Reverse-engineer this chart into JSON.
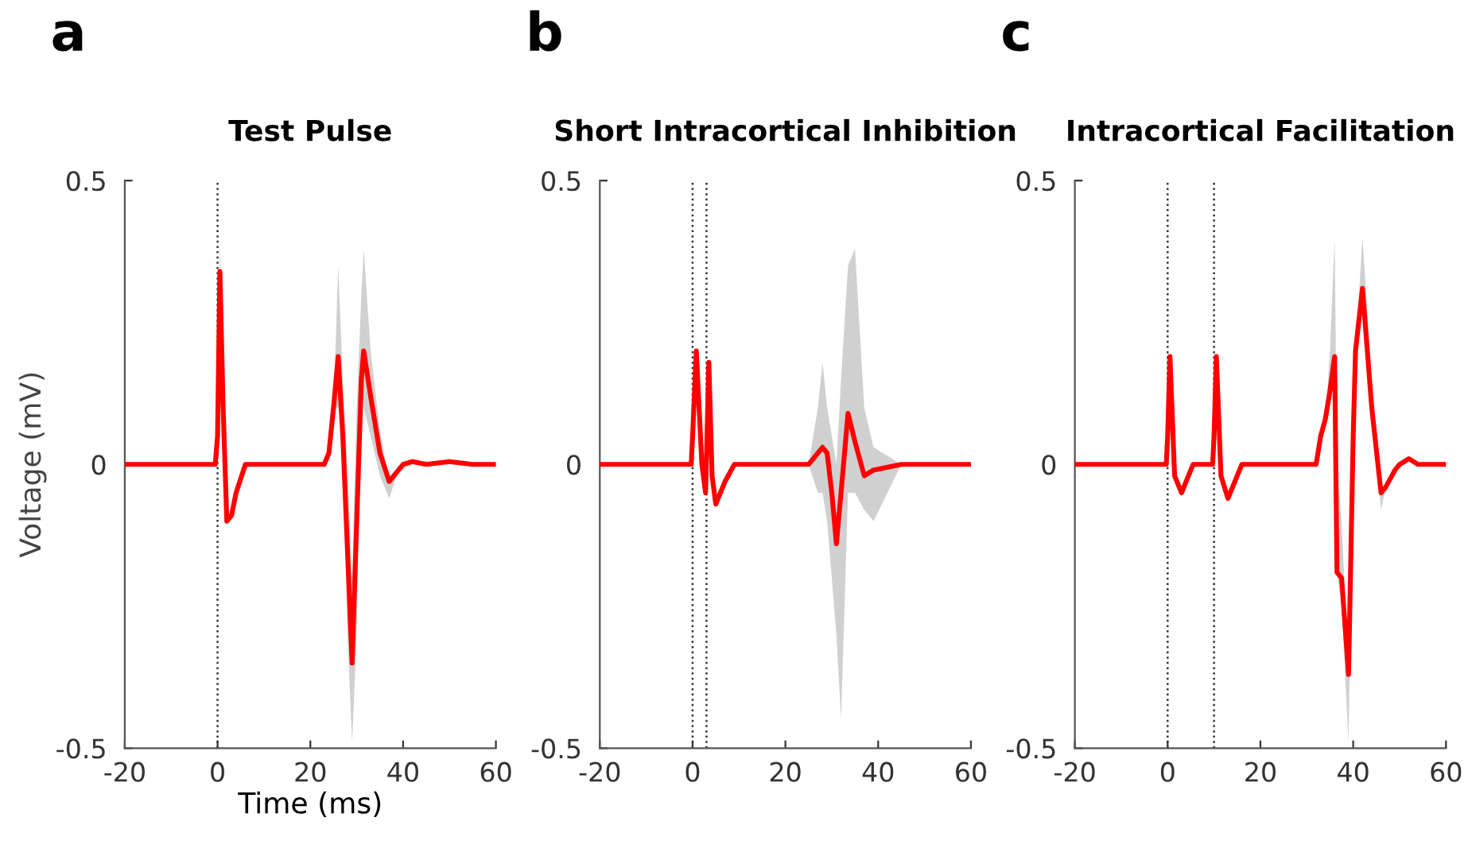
{
  "chart_data": [
    {
      "type": "line",
      "title": "Test Pulse",
      "xlabel": "Time (ms)",
      "ylabel": "Voltage (mV)",
      "annotations": [
        "a"
      ],
      "xlim": [
        -20,
        60
      ],
      "ylim": [
        -0.5,
        0.5
      ],
      "xticks": [
        -20,
        0,
        20,
        40,
        60
      ],
      "yticks": [
        -0.5,
        0,
        0.5
      ],
      "grid": false,
      "legend": false,
      "ref_lines": [
        {
          "axis": "x",
          "value": 0,
          "label": null,
          "color": "#333333",
          "line_style": "dotted"
        }
      ],
      "x": [
        -20,
        -10,
        -0.5,
        0,
        0.5,
        1.2,
        2,
        3,
        4,
        6,
        10,
        20,
        23,
        24,
        25,
        26,
        27,
        28,
        29,
        30,
        31,
        31.5,
        33,
        35,
        37,
        39,
        40,
        42,
        45,
        50,
        55,
        60
      ],
      "series": [
        {
          "color": "#ff0000",
          "values": [
            0,
            0,
            0,
            0.05,
            0.34,
            0.1,
            -0.1,
            -0.09,
            -0.05,
            0,
            0,
            0,
            0,
            0.02,
            0.1,
            0.19,
            0.05,
            -0.15,
            -0.35,
            -0.1,
            0.15,
            0.2,
            0.12,
            0.02,
            -0.03,
            -0.01,
            0,
            0.005,
            0,
            0.005,
            0,
            0
          ],
          "upper": [
            0,
            0,
            0,
            0.05,
            0.4,
            0.1,
            -0.1,
            -0.09,
            -0.05,
            0,
            0,
            0,
            0,
            0.02,
            0.1,
            0.35,
            0.15,
            0,
            -0.2,
            0.1,
            0.3,
            0.38,
            0.2,
            0.06,
            -0.03,
            -0.01,
            0,
            0.005,
            0,
            0.005,
            0,
            0
          ],
          "lower": [
            0,
            0,
            0,
            0.05,
            0.34,
            0.1,
            -0.1,
            -0.09,
            -0.05,
            0,
            0,
            0,
            0,
            0.02,
            0.1,
            0.1,
            0.05,
            -0.3,
            -0.49,
            -0.3,
            0.15,
            0.1,
            0.05,
            -0.02,
            -0.06,
            -0.01,
            0,
            0.005,
            0,
            0.005,
            0,
            0
          ]
        }
      ]
    },
    {
      "type": "line",
      "title": "Short Intracortical Inhibition",
      "annotations": [
        "b"
      ],
      "xlim": [
        -20,
        60
      ],
      "ylim": [
        -0.5,
        0.5
      ],
      "xticks": [
        -20,
        0,
        20,
        40,
        60
      ],
      "yticks": [
        -0.5,
        0,
        0.5
      ],
      "grid": false,
      "legend": false,
      "ref_lines": [
        {
          "axis": "x",
          "value": 0,
          "label": null,
          "color": "#333333",
          "line_style": "dotted"
        },
        {
          "axis": "x",
          "value": 3,
          "label": null,
          "color": "#333333",
          "line_style": "dotted"
        }
      ],
      "x": [
        -20,
        -10,
        -0.3,
        0,
        0.8,
        2,
        2.8,
        3.5,
        4.2,
        5,
        7,
        9,
        20,
        25,
        27,
        28,
        29,
        30,
        31,
        32,
        33.5,
        35,
        37,
        39,
        45,
        60
      ],
      "series": [
        {
          "color": "#ff0000",
          "values": [
            0,
            0,
            0,
            0.05,
            0.2,
            0,
            -0.05,
            0.18,
            -0.02,
            -0.07,
            -0.03,
            0,
            0,
            0,
            0.02,
            0.03,
            0.02,
            -0.05,
            -0.14,
            -0.05,
            0.09,
            0.04,
            -0.02,
            -0.01,
            0,
            0
          ],
          "upper": [
            0,
            0,
            0,
            0.05,
            0.2,
            0,
            -0.05,
            0.18,
            -0.02,
            -0.07,
            -0.03,
            0,
            0,
            0,
            0.1,
            0.18,
            0.1,
            0.05,
            0,
            0.15,
            0.35,
            0.38,
            0.1,
            0.03,
            0,
            0
          ],
          "lower": [
            0,
            0,
            0,
            0.05,
            0.2,
            0,
            -0.05,
            0.18,
            -0.02,
            -0.07,
            -0.03,
            0,
            0,
            0,
            -0.05,
            -0.05,
            -0.1,
            -0.2,
            -0.3,
            -0.45,
            -0.05,
            -0.05,
            -0.08,
            -0.1,
            0,
            0
          ]
        }
      ]
    },
    {
      "type": "line",
      "title": "Intracortical Facilitation",
      "annotations": [
        "c"
      ],
      "xlim": [
        -20,
        60
      ],
      "ylim": [
        -0.5,
        0.5
      ],
      "xticks": [
        -20,
        0,
        20,
        40,
        60
      ],
      "yticks": [
        -0.5,
        0,
        0.5
      ],
      "grid": false,
      "legend": false,
      "ref_lines": [
        {
          "axis": "x",
          "value": 0,
          "label": null,
          "color": "#333333",
          "line_style": "dotted"
        },
        {
          "axis": "x",
          "value": 10,
          "label": null,
          "color": "#333333",
          "line_style": "dotted"
        }
      ],
      "x": [
        -20,
        -10,
        -0.3,
        0,
        0.5,
        1.5,
        3,
        4,
        5.5,
        9.7,
        10,
        10.5,
        11.5,
        13,
        14,
        16,
        20,
        30,
        32,
        33,
        34,
        35,
        36,
        36.5,
        37.5,
        39,
        40,
        40.5,
        42,
        44,
        46,
        47,
        49,
        50,
        52,
        54,
        60
      ],
      "series": [
        {
          "color": "#ff0000",
          "values": [
            0,
            0,
            0,
            0.05,
            0.19,
            -0.02,
            -0.05,
            -0.03,
            0,
            0,
            0.05,
            0.19,
            -0.02,
            -0.06,
            -0.04,
            0,
            0,
            0,
            0,
            0.05,
            0.08,
            0.13,
            0.19,
            -0.19,
            -0.2,
            -0.37,
            0.05,
            0.2,
            0.31,
            0.1,
            -0.05,
            -0.04,
            -0.01,
            0,
            0.01,
            0,
            0
          ],
          "upper": [
            0,
            0,
            0,
            0.05,
            0.19,
            -0.02,
            -0.05,
            -0.03,
            0,
            0,
            0.05,
            0.19,
            -0.02,
            -0.06,
            -0.04,
            0,
            0,
            0,
            0,
            0.05,
            0.08,
            0.2,
            0.4,
            0,
            -0.1,
            -0.37,
            0.05,
            0.2,
            0.4,
            0.15,
            -0.05,
            -0.04,
            -0.01,
            0,
            0.01,
            0,
            0
          ],
          "lower": [
            0,
            0,
            0,
            0.05,
            0.19,
            -0.02,
            -0.05,
            -0.03,
            0,
            0,
            0.05,
            0.19,
            -0.02,
            -0.06,
            -0.04,
            0,
            0,
            0,
            0,
            0.05,
            0.08,
            0.13,
            0.19,
            -0.19,
            -0.25,
            -0.49,
            0.05,
            0.2,
            0.31,
            0.1,
            -0.08,
            -0.04,
            -0.01,
            0,
            0.01,
            0,
            0
          ]
        }
      ]
    }
  ]
}
